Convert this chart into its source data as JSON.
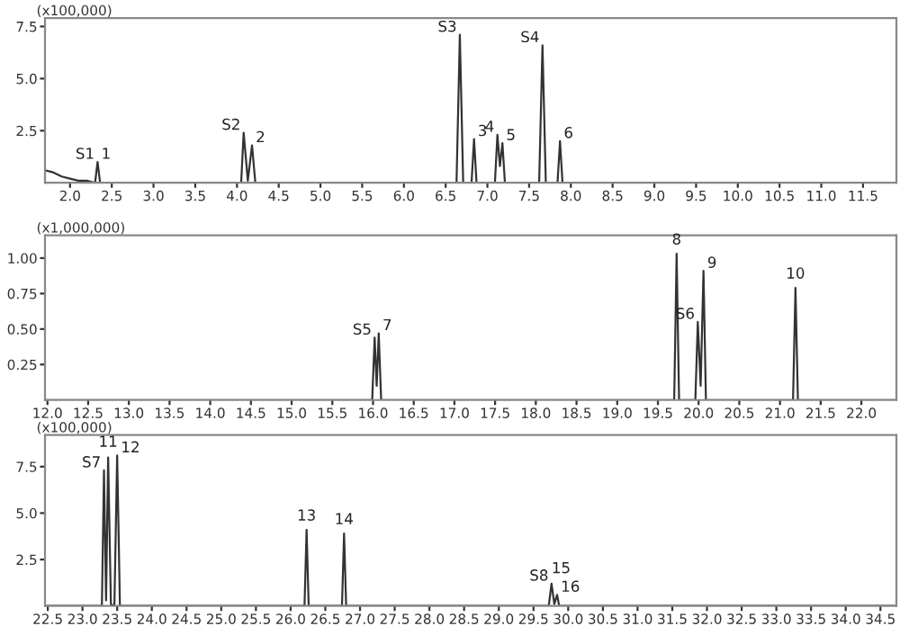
{
  "chart_data": [
    {
      "type": "line",
      "ylabel": "(x100,000)",
      "xlim": [
        1.7,
        11.9
      ],
      "ylim": [
        0,
        7.9
      ],
      "grid": false,
      "legend": false,
      "marker": "none",
      "line_style": "solid",
      "xticks": [
        {
          "value": 2,
          "label": "2.0"
        },
        {
          "value": 2.5,
          "label": "2.5"
        },
        {
          "value": 3,
          "label": "3.0"
        },
        {
          "value": 3.5,
          "label": "3.5"
        },
        {
          "value": 4,
          "label": "4.0"
        },
        {
          "value": 4.5,
          "label": "4.5"
        },
        {
          "value": 5,
          "label": "5.0"
        },
        {
          "value": 5.5,
          "label": "5.5"
        },
        {
          "value": 6,
          "label": "6.0"
        },
        6.5,
        {
          "value": 7,
          "label": "7.0"
        },
        7.5,
        {
          "value": 8,
          "label": "8.0"
        },
        8.5,
        {
          "value": 9,
          "label": "9.0"
        },
        9.5,
        {
          "value": 10,
          "label": "10.0"
        },
        10.5,
        {
          "value": 11,
          "label": "11.0"
        },
        11.5
      ],
      "yticks": [
        {
          "value": 2.5,
          "label": "2.5"
        },
        {
          "value": 5,
          "label": "5.0"
        },
        7.5
      ],
      "series": [
        {
          "color": "#333333",
          "x": [
            1.7,
            1.8,
            1.9,
            2.0,
            2.1,
            2.2,
            2.3,
            2.33,
            2.36,
            4.05,
            4.08,
            4.13,
            4.18,
            4.22,
            6.63,
            6.67,
            6.71,
            6.81,
            6.84,
            6.87,
            7.09,
            7.12,
            7.15,
            7.18,
            7.21,
            7.62,
            7.66,
            7.7,
            7.84,
            7.87,
            7.9,
            11.9
          ],
          "values": [
            0.6,
            0.5,
            0.3,
            0.2,
            0.1,
            0.1,
            0,
            1.0,
            0,
            0,
            2.4,
            0.1,
            1.8,
            0,
            0,
            7.1,
            0,
            0,
            2.1,
            0,
            0,
            2.3,
            0.8,
            1.9,
            0,
            0,
            6.6,
            0,
            0,
            2.0,
            0,
            0
          ]
        }
      ],
      "annotations": [
        {
          "text": "S1",
          "x": 2.33,
          "y": 1.0
        },
        {
          "text": "1",
          "x": 2.33,
          "y": 1.0
        },
        {
          "text": "S2",
          "x": 4.08,
          "y": 2.4
        },
        {
          "text": "2",
          "x": 4.18,
          "y": 1.8
        },
        {
          "text": "S3",
          "x": 6.67,
          "y": 7.1
        },
        {
          "text": "3",
          "x": 6.84,
          "y": 2.1
        },
        {
          "text": "4",
          "x": 7.12,
          "y": 2.3
        },
        {
          "text": "5",
          "x": 7.18,
          "y": 1.9
        },
        {
          "text": "S4",
          "x": 7.66,
          "y": 6.6
        },
        {
          "text": "6",
          "x": 7.87,
          "y": 2.0
        }
      ]
    },
    {
      "type": "line",
      "ylabel": "(x1,000,000)",
      "xlim": [
        11.97,
        22.43
      ],
      "ylim": [
        0,
        1.16
      ],
      "grid": false,
      "legend": false,
      "marker": "none",
      "line_style": "solid",
      "xticks": [
        {
          "value": 12,
          "label": "12.0"
        },
        12.5,
        {
          "value": 13,
          "label": "13.0"
        },
        13.5,
        {
          "value": 14,
          "label": "14.0"
        },
        14.5,
        {
          "value": 15,
          "label": "15.0"
        },
        15.5,
        {
          "value": 16,
          "label": "16.0"
        },
        16.5,
        {
          "value": 17,
          "label": "17.0"
        },
        17.5,
        {
          "value": 18,
          "label": "18.0"
        },
        18.5,
        {
          "value": 19,
          "label": "19.0"
        },
        19.5,
        {
          "value": 20,
          "label": "20.0"
        },
        20.5,
        {
          "value": 21,
          "label": "21.0"
        },
        21.5,
        {
          "value": 22,
          "label": "22.0"
        }
      ],
      "yticks": [
        {
          "value": 0.25,
          "label": "0.25"
        },
        {
          "value": 0.5,
          "label": "0.50"
        },
        {
          "value": 0.75,
          "label": "0.75"
        },
        {
          "value": 1,
          "label": "1.00"
        }
      ],
      "series": [
        {
          "color": "#333333",
          "x": [
            11.97,
            15.99,
            16.02,
            16.045,
            16.07,
            16.1,
            19.7,
            19.73,
            19.76,
            19.96,
            19.99,
            20.025,
            20.06,
            20.09,
            21.16,
            21.19,
            21.22,
            22.43
          ],
          "values": [
            0,
            0,
            0.44,
            0.1,
            0.47,
            0,
            0,
            1.03,
            0,
            0,
            0.55,
            0.1,
            0.91,
            0,
            0,
            0.79,
            0,
            0
          ]
        }
      ],
      "annotations": [
        {
          "text": "S5",
          "x": 16.02,
          "y": 0.44
        },
        {
          "text": "7",
          "x": 16.07,
          "y": 0.47
        },
        {
          "text": "8",
          "x": 19.73,
          "y": 1.03
        },
        {
          "text": "S6",
          "x": 19.99,
          "y": 0.55
        },
        {
          "text": "9",
          "x": 20.06,
          "y": 0.91
        },
        {
          "text": "10",
          "x": 21.19,
          "y": 0.79
        }
      ]
    },
    {
      "type": "line",
      "ylabel": "(x100,000)",
      "xlim": [
        22.46,
        34.73
      ],
      "ylim": [
        0,
        9.2
      ],
      "grid": false,
      "legend": false,
      "marker": "none",
      "line_style": "solid",
      "xticks": [
        22.5,
        {
          "value": 23,
          "label": "23.0"
        },
        23.5,
        {
          "value": 24,
          "label": "24.0"
        },
        24.5,
        {
          "value": 25,
          "label": "25.0"
        },
        25.5,
        {
          "value": 26,
          "label": "26.0"
        },
        26.5,
        {
          "value": 27,
          "label": "27.0"
        },
        27.5,
        {
          "value": 28,
          "label": "28.0"
        },
        28.5,
        {
          "value": 29,
          "label": "29.0"
        },
        29.5,
        {
          "value": 30,
          "label": "30.0"
        },
        30.5,
        {
          "value": 31,
          "label": "31.0"
        },
        31.5,
        {
          "value": 32,
          "label": "32.0"
        },
        32.5,
        {
          "value": 33,
          "label": "33.0"
        },
        33.5,
        {
          "value": 34,
          "label": "34.0"
        },
        34.5
      ],
      "yticks": [
        {
          "value": 2.5,
          "label": "2.5"
        },
        {
          "value": 5,
          "label": "5.0"
        },
        7.5
      ],
      "series": [
        {
          "color": "#333333",
          "x": [
            22.46,
            23.28,
            23.31,
            23.34,
            23.37,
            23.41,
            23.46,
            23.5,
            23.54,
            26.2,
            26.23,
            26.26,
            26.74,
            26.77,
            26.8,
            29.72,
            29.76,
            29.8,
            29.84,
            29.87,
            34.73
          ],
          "values": [
            0,
            0,
            7.3,
            0.3,
            8.0,
            0.1,
            0,
            8.1,
            0,
            0,
            4.1,
            0,
            0,
            3.9,
            0,
            0,
            1.2,
            0.1,
            0.6,
            0,
            0
          ]
        }
      ],
      "annotations": [
        {
          "text": "S7",
          "x": 23.31,
          "y": 7.3
        },
        {
          "text": "11",
          "x": 23.37,
          "y": 8.0
        },
        {
          "text": "12",
          "x": 23.5,
          "y": 8.1
        },
        {
          "text": "13",
          "x": 26.23,
          "y": 4.1
        },
        {
          "text": "14",
          "x": 26.77,
          "y": 3.9
        },
        {
          "text": "S8",
          "x": 29.76,
          "y": 1.2
        },
        {
          "text": "15",
          "x": 29.76,
          "y": 1.2
        },
        {
          "text": "16",
          "x": 29.84,
          "y": 0.6
        }
      ]
    }
  ]
}
